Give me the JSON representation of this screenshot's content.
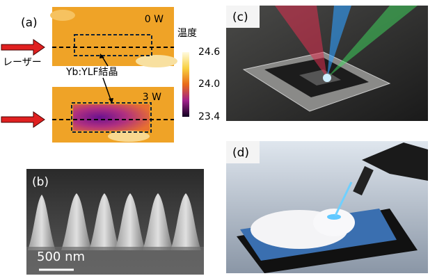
{
  "panel_a": {
    "label": "(a)",
    "power_top": "0 W",
    "power_bottom": "3 W",
    "laser": "レーザー",
    "crystal": "Yb:YLF結晶",
    "colorbar": {
      "title": "温度",
      "ticks": [
        "24.6",
        "24.0",
        "23.4"
      ]
    }
  },
  "panel_b": {
    "label": "(b)",
    "scale_bar": "500 nm"
  },
  "panel_c": {
    "label": "(c)"
  },
  "panel_d": {
    "label": "(d)"
  }
}
